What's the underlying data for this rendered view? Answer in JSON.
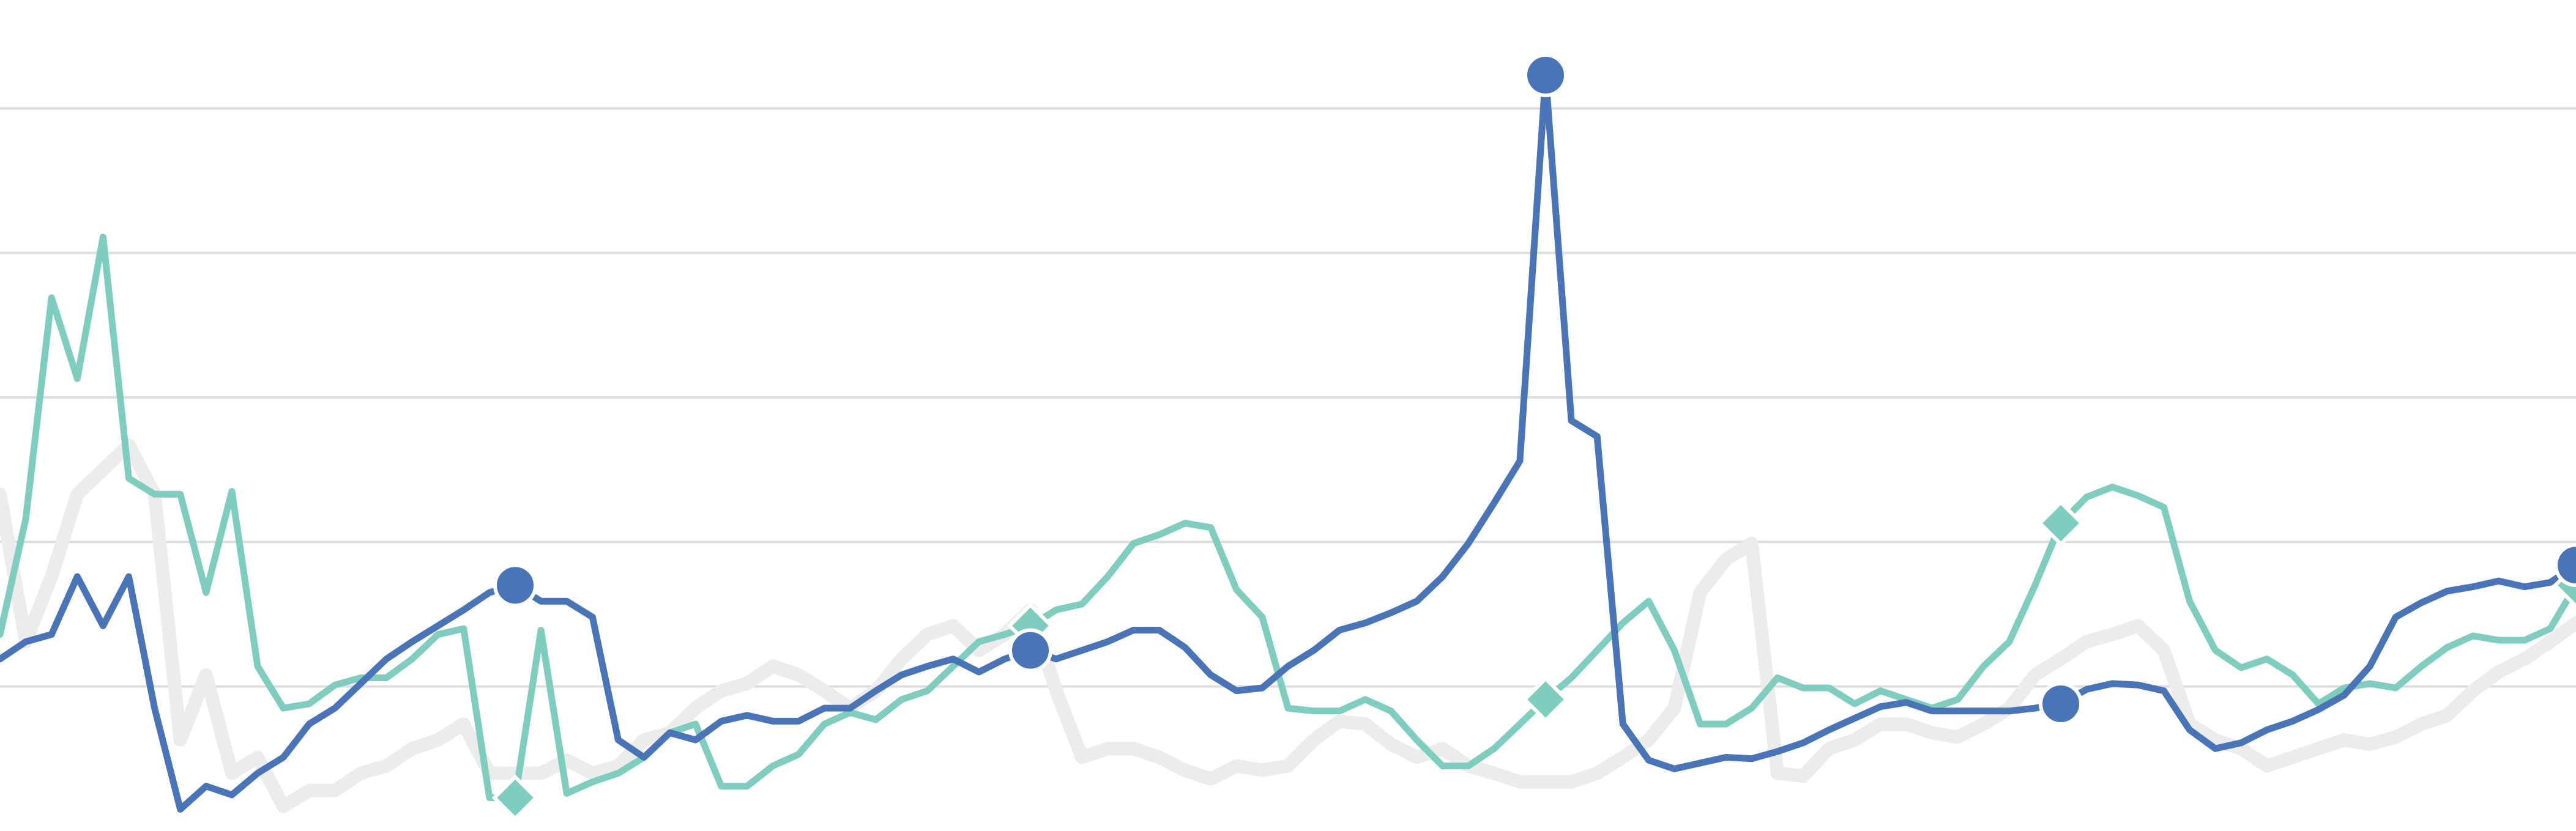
{
  "chart_data": {
    "type": "line",
    "x": [
      0,
      1,
      2,
      3,
      4,
      5,
      6,
      7,
      8,
      9,
      10,
      11,
      12,
      13,
      14,
      15,
      16,
      17,
      18,
      19,
      20,
      21,
      22,
      23,
      24,
      25,
      26,
      27,
      28,
      29,
      30,
      31,
      32,
      33,
      34,
      35,
      36,
      37,
      38,
      39,
      40,
      41,
      42,
      43,
      44,
      45,
      46,
      47,
      48,
      49,
      50,
      51,
      52,
      53,
      54,
      55,
      56,
      57,
      58,
      59,
      60,
      61,
      62,
      63,
      64,
      65,
      66,
      67,
      68,
      69,
      70,
      71,
      72,
      73,
      74,
      75,
      76,
      77,
      78,
      79,
      80,
      81,
      82,
      83,
      84,
      85,
      86,
      87,
      88,
      89,
      90,
      91,
      92,
      93,
      94,
      95,
      96,
      97,
      98,
      99,
      100
    ],
    "xlim": [
      0,
      100
    ],
    "ylim": [
      0,
      5.75
    ],
    "yticks": [
      1,
      2,
      3,
      4,
      5
    ],
    "grid": true,
    "marker_every": 20,
    "series": [
      {
        "color": "#ececec",
        "values": [
          2.33,
          1.31,
          1.76,
          2.33,
          2.5,
          2.67,
          2.33,
          0.63,
          1.08,
          0.4,
          0.51,
          0.17,
          0.28,
          0.28,
          0.4,
          0.45,
          0.57,
          0.63,
          0.74,
          0.4,
          0.4,
          0.4,
          0.49,
          0.4,
          0.45,
          0.63,
          0.68,
          0.85,
          0.97,
          1.02,
          1.14,
          1.08,
          0.97,
          0.85,
          0.97,
          1.19,
          1.36,
          1.42,
          1.25,
          1.36,
          1.53,
          0.97,
          0.51,
          0.57,
          0.57,
          0.51,
          0.42,
          0.36,
          0.45,
          0.42,
          0.45,
          0.63,
          0.76,
          0.74,
          0.6,
          0.51,
          0.57,
          0.45,
          0.4,
          0.34,
          0.34,
          0.34,
          0.4,
          0.51,
          0.63,
          0.85,
          1.65,
          1.88,
          1.99,
          0.4,
          0.38,
          0.57,
          0.63,
          0.74,
          0.74,
          0.68,
          0.65,
          0.74,
          0.85,
          1.08,
          1.19,
          1.31,
          1.36,
          1.42,
          1.25,
          0.74,
          0.63,
          0.57,
          0.45,
          0.51,
          0.57,
          0.63,
          0.6,
          0.65,
          0.74,
          0.8,
          0.97,
          1.1,
          1.19,
          1.31,
          1.44
        ]
      },
      {
        "color": "#7fcdbf",
        "marker": "diamond",
        "values": [
          1.36,
          2.16,
          3.69,
          3.13,
          4.11,
          2.44,
          2.33,
          2.33,
          1.65,
          2.35,
          1.14,
          0.85,
          0.88,
          1.01,
          1.06,
          1.06,
          1.19,
          1.36,
          1.4,
          0.23,
          0.23,
          1.39,
          0.26,
          0.34,
          0.4,
          0.51,
          0.68,
          0.74,
          0.31,
          0.31,
          0.45,
          0.53,
          0.74,
          0.82,
          0.77,
          0.91,
          0.97,
          1.14,
          1.31,
          1.36,
          1.42,
          1.53,
          1.57,
          1.76,
          1.99,
          2.05,
          2.13,
          2.1,
          1.67,
          1.48,
          0.85,
          0.83,
          0.83,
          0.91,
          0.83,
          0.63,
          0.45,
          0.45,
          0.57,
          0.74,
          0.91,
          1.06,
          1.25,
          1.44,
          1.59,
          1.25,
          0.74,
          0.74,
          0.85,
          1.06,
          0.99,
          0.99,
          0.88,
          0.97,
          0.91,
          0.85,
          0.91,
          1.14,
          1.31,
          1.7,
          2.13,
          2.31,
          2.38,
          2.32,
          2.24,
          1.59,
          1.25,
          1.13,
          1.19,
          1.08,
          0.88,
          0.99,
          1.02,
          0.99,
          1.14,
          1.27,
          1.35,
          1.32,
          1.32,
          1.4,
          1.7
        ]
      },
      {
        "color": "#4a74b8",
        "marker": "circle",
        "values": [
          1.19,
          1.31,
          1.36,
          1.76,
          1.42,
          1.76,
          0.85,
          0.15,
          0.31,
          0.25,
          0.4,
          0.51,
          0.74,
          0.85,
          1.02,
          1.19,
          1.31,
          1.42,
          1.53,
          1.65,
          1.7,
          1.59,
          1.59,
          1.48,
          0.63,
          0.51,
          0.68,
          0.63,
          0.76,
          0.8,
          0.76,
          0.76,
          0.85,
          0.85,
          0.97,
          1.08,
          1.14,
          1.19,
          1.1,
          1.19,
          1.25,
          1.19,
          1.25,
          1.31,
          1.39,
          1.39,
          1.27,
          1.08,
          0.97,
          0.99,
          1.14,
          1.25,
          1.39,
          1.44,
          1.51,
          1.59,
          1.76,
          1.99,
          2.27,
          2.56,
          5.23,
          2.84,
          2.73,
          0.74,
          0.49,
          0.43,
          0.47,
          0.51,
          0.5,
          0.55,
          0.61,
          0.7,
          0.78,
          0.86,
          0.89,
          0.83,
          0.83,
          0.83,
          0.83,
          0.85,
          0.88,
          0.98,
          1.02,
          1.01,
          0.97,
          0.7,
          0.57,
          0.61,
          0.7,
          0.76,
          0.84,
          0.94,
          1.14,
          1.48,
          1.58,
          1.66,
          1.69,
          1.73,
          1.69,
          1.72,
          1.84
        ]
      }
    ]
  }
}
